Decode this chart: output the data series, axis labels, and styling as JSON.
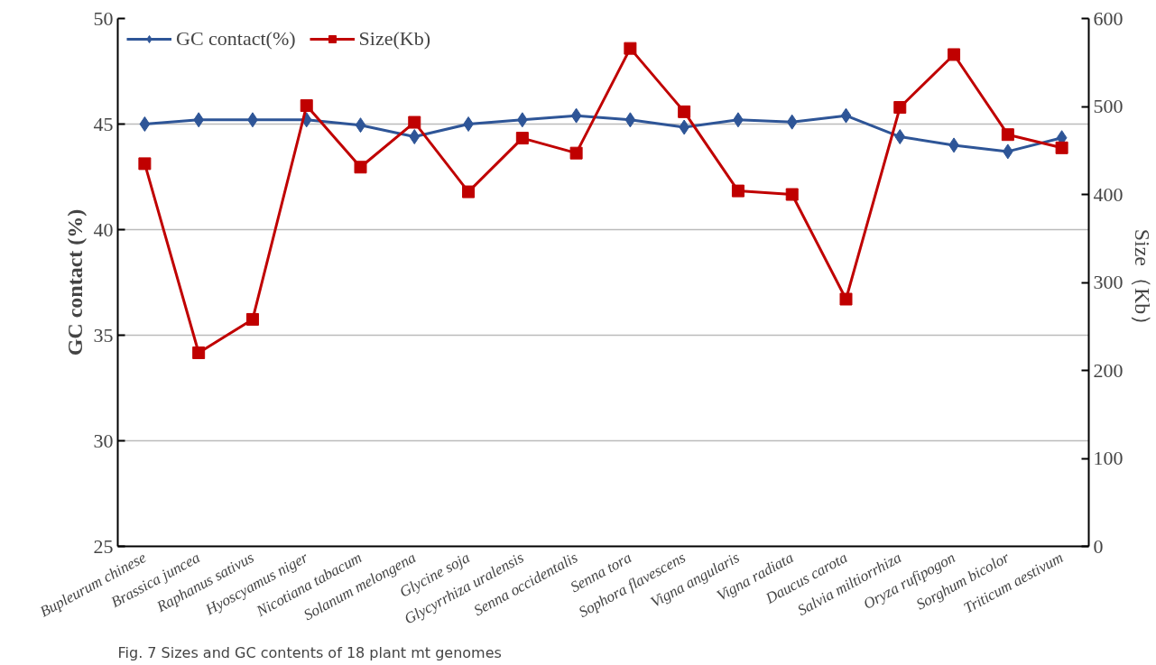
{
  "chart_data": {
    "type": "line",
    "categories": [
      "Bupleurum chinese",
      "Brassica juncea",
      "Raphanus sativus",
      "Hyoscyamus niger",
      "Nicotiana tabacum",
      "Solanum melongena",
      "Glycine soja",
      "Glycyrrhiza uralensis",
      "Senna occidentalis",
      "Senna tora",
      "Sophora flavescens",
      "Vigna angularis",
      "Vigna radiata",
      "Daucus carota",
      "Salvia miltiorrhiza",
      "Oryza rufipogon",
      "Sorghum bicolor",
      "Triticum aestivum"
    ],
    "series": [
      {
        "name": "GC contact(%)",
        "color": "#2e5597",
        "marker": "diamond",
        "values": [
          45.0,
          45.2,
          45.2,
          45.2,
          44.95,
          44.4,
          45.0,
          45.2,
          45.4,
          45.2,
          44.85,
          45.2,
          45.1,
          45.4,
          44.4,
          44.0,
          43.7,
          44.35
        ]
      },
      {
        "name": "Size(Kb)",
        "color": "#c00000",
        "marker": "square",
        "axis": "y2",
        "values": [
          435,
          220,
          258,
          501,
          431,
          482,
          403,
          464,
          447,
          566,
          494,
          404,
          400,
          281,
          499,
          559,
          468,
          453
        ]
      }
    ],
    "ylabel": "GC contact (%)",
    "y2label": "Size（Kb）",
    "ylim": [
      25,
      50
    ],
    "yticks": [
      25,
      30,
      35,
      40,
      45,
      50
    ],
    "y2lim": [
      0,
      600
    ],
    "y2ticks": [
      0,
      100,
      200,
      300,
      400,
      500,
      600
    ],
    "grid": "y",
    "legend": "top left",
    "annotations": [
      "Fig. 7 Sizes and GC contents of 18 plant mt genomes"
    ]
  }
}
